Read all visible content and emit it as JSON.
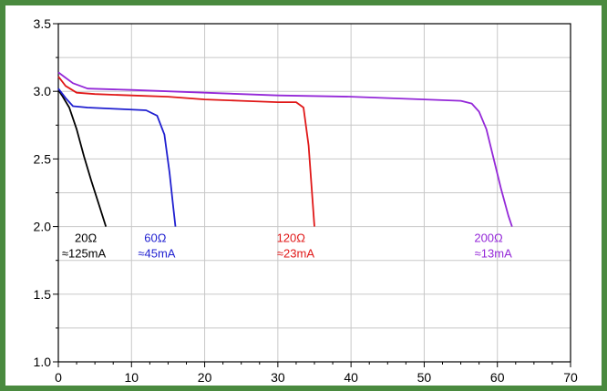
{
  "chart_data": {
    "type": "line",
    "title": "",
    "xlabel": "",
    "ylabel": "",
    "xlim": [
      0,
      70
    ],
    "ylim": [
      1.0,
      3.5
    ],
    "grid": true,
    "x_ticks": [
      "0",
      "10",
      "20",
      "30",
      "40",
      "50",
      "60",
      "70"
    ],
    "y_ticks": [
      "1.0",
      "1.5",
      "2.0",
      "2.5",
      "3.0",
      "3.5"
    ],
    "frame_color": "#4a8a3f",
    "grid_color": "#c8c8c8",
    "series": [
      {
        "annotation": [
          "20Ω",
          "≈125mA"
        ],
        "color": "#000000",
        "x": [
          0,
          0.5,
          1.5,
          2.5,
          3.5,
          4.5,
          5.5,
          6.5
        ],
        "y": [
          3.01,
          2.97,
          2.88,
          2.72,
          2.52,
          2.34,
          2.17,
          2.0
        ],
        "label_at": [
          6.5,
          2.0
        ]
      },
      {
        "annotation": [
          "60Ω",
          "≈45mA"
        ],
        "color": "#1f1fd0",
        "x": [
          0,
          1,
          2,
          4,
          8,
          12,
          13.5,
          14.5,
          15.2,
          15.7,
          16.0
        ],
        "y": [
          3.02,
          2.95,
          2.89,
          2.88,
          2.87,
          2.86,
          2.82,
          2.68,
          2.4,
          2.15,
          2.0
        ],
        "label_at": [
          16,
          2.0
        ]
      },
      {
        "annotation": [
          "120Ω",
          "≈23mA"
        ],
        "color": "#e01818",
        "x": [
          0,
          1,
          2.5,
          5,
          10,
          15,
          20,
          25,
          30,
          32.5,
          33.5,
          34.2,
          34.6,
          35.0
        ],
        "y": [
          3.11,
          3.04,
          2.99,
          2.98,
          2.97,
          2.96,
          2.94,
          2.93,
          2.92,
          2.92,
          2.88,
          2.6,
          2.3,
          2.0
        ],
        "label_at": [
          35,
          2.0
        ]
      },
      {
        "annotation": [
          "200Ω",
          "≈13mA"
        ],
        "color": "#9428d8",
        "x": [
          0,
          1,
          2,
          4,
          10,
          20,
          30,
          40,
          50,
          55,
          56.5,
          57.5,
          58.5,
          59.5,
          60.5,
          61.5,
          62.0
        ],
        "y": [
          3.14,
          3.1,
          3.06,
          3.02,
          3.01,
          2.99,
          2.97,
          2.96,
          2.94,
          2.93,
          2.91,
          2.85,
          2.72,
          2.5,
          2.28,
          2.08,
          2.0
        ],
        "label_at": [
          62,
          2.0
        ]
      }
    ]
  }
}
